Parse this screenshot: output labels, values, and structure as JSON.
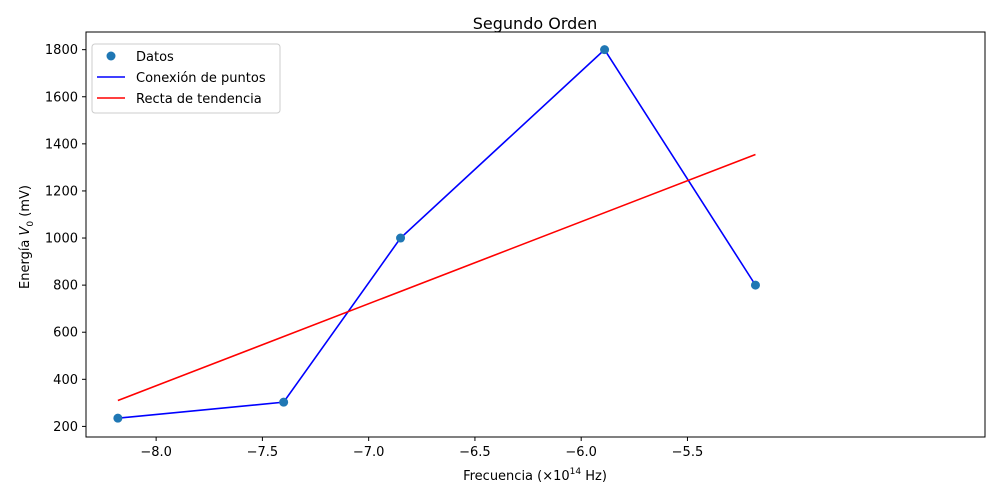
{
  "chart_data": {
    "type": "line",
    "title": "Segundo Orden",
    "xlabel_prefix": "Frecuencia (×10",
    "xlabel_exp": "14",
    "xlabel_suffix": " Hz)",
    "ylabel_prefix": "Energía ",
    "ylabel_var": "V",
    "ylabel_sub": "0",
    "ylabel_suffix": " (mV)",
    "xlim": [
      -8.33,
      -4.1
    ],
    "ylim": [
      155,
      1875
    ],
    "xticks": [
      -8.0,
      -7.5,
      -7.0,
      -6.5,
      -6.0,
      -5.5
    ],
    "xtick_labels": [
      "−8.0",
      "−7.5",
      "−7.0",
      "−6.5",
      "−6.0",
      "−5.5"
    ],
    "yticks": [
      200,
      400,
      600,
      800,
      1000,
      1200,
      1400,
      1600,
      1800
    ],
    "ytick_labels": [
      "200",
      "400",
      "600",
      "800",
      "1000",
      "1200",
      "1400",
      "1600",
      "1800"
    ],
    "grid": false,
    "legend_position": "top-left",
    "series": [
      {
        "name": "Datos",
        "kind": "scatter",
        "color": "#1f77b4",
        "x": [
          -8.18,
          -7.4,
          -6.85,
          -5.89,
          -5.18
        ],
        "y": [
          235,
          303,
          1000,
          1800,
          800
        ]
      },
      {
        "name": "Conexión de puntos",
        "kind": "line",
        "color": "#0000ff",
        "x": [
          -8.18,
          -7.4,
          -6.85,
          -5.89,
          -5.18
        ],
        "y": [
          235,
          303,
          1000,
          1800,
          800
        ]
      },
      {
        "name": "Recta de tendencia",
        "kind": "line",
        "color": "#ff0000",
        "x": [
          -8.18,
          -5.18
        ],
        "y": [
          310,
          1355
        ]
      }
    ]
  }
}
